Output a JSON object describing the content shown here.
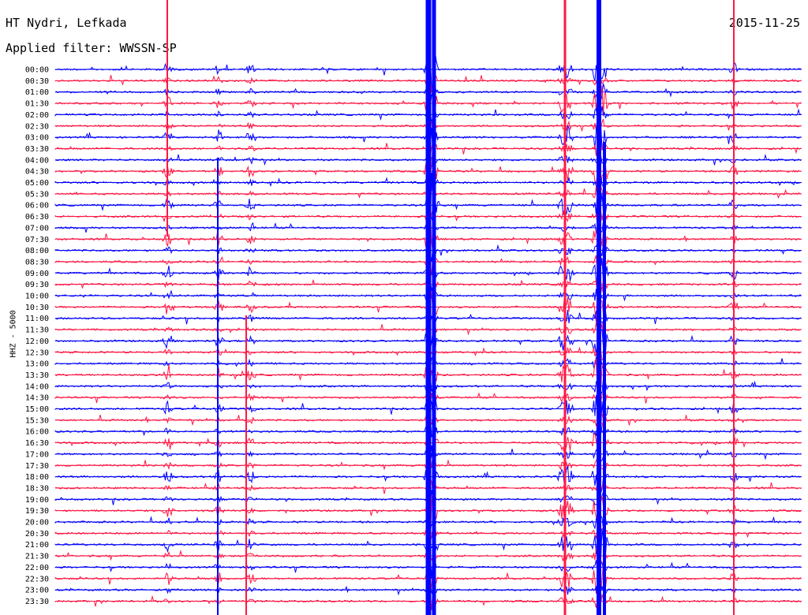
{
  "header": {
    "station": "HT Nydri, Lefkada",
    "filter": "Applied filter: WWSSN-SP",
    "date": "2015-11-25"
  },
  "colors": {
    "trace_a": "#0000ff",
    "trace_b": "#ff1744"
  },
  "chart_data": {
    "type": "line",
    "ylabel": "HHZ - 5000",
    "row_labels": [
      "00:00",
      "00:30",
      "01:00",
      "01:30",
      "02:00",
      "02:30",
      "03:00",
      "03:30",
      "04:00",
      "04:30",
      "05:00",
      "05:30",
      "06:00",
      "06:30",
      "07:00",
      "07:30",
      "08:00",
      "08:30",
      "09:00",
      "09:30",
      "10:00",
      "10:30",
      "11:00",
      "11:30",
      "12:00",
      "12:30",
      "13:00",
      "13:30",
      "14:00",
      "14:30",
      "15:00",
      "15:30",
      "16:00",
      "16:30",
      "17:00",
      "17:30",
      "18:00",
      "18:30",
      "19:00",
      "19:30",
      "20:00",
      "20:30",
      "21:00",
      "21:30",
      "22:00",
      "22:30",
      "23:00",
      "23:30"
    ],
    "row_minutes": 30,
    "trace_colors_alternate": [
      "#0000ff",
      "#ff1744"
    ],
    "grid": false
  }
}
